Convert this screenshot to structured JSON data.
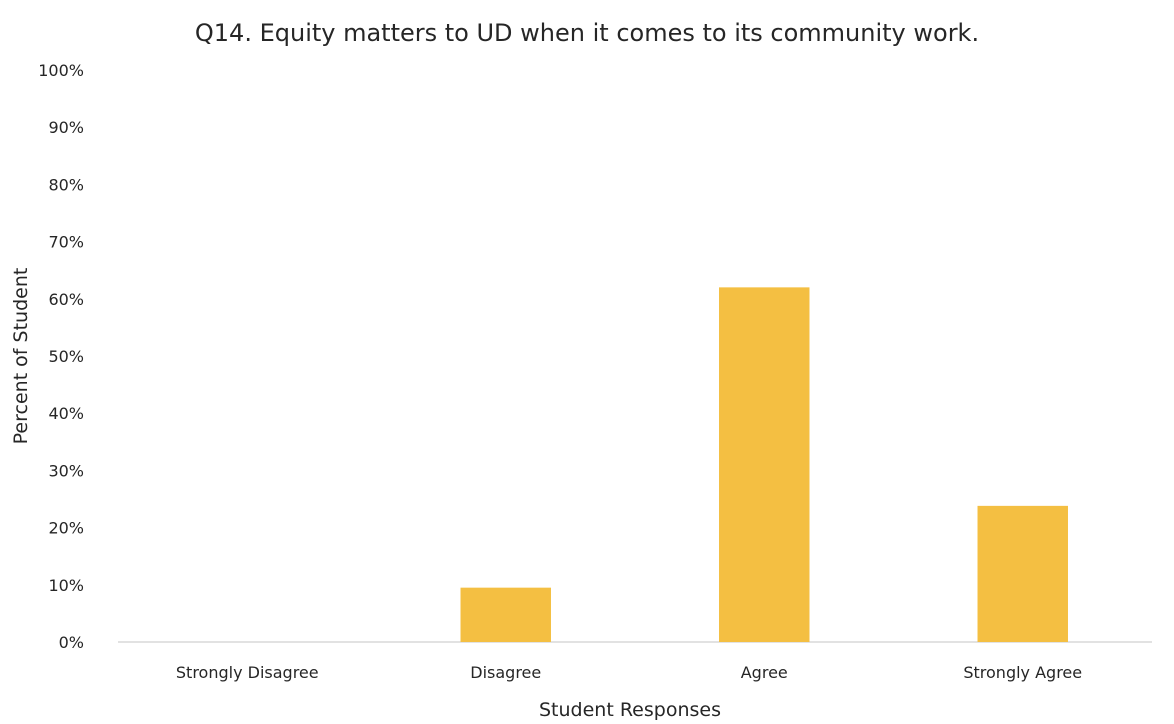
{
  "chart_data": {
    "type": "bar",
    "title": "Q14. Equity matters to UD when it comes to its community work.",
    "xlabel": "Student Responses",
    "ylabel": "Percent of Student",
    "categories": [
      "Strongly Disagree",
      "Disagree",
      "Agree",
      "Strongly Agree"
    ],
    "values": [
      0,
      9.5,
      62,
      23.8
    ],
    "ylim": [
      0,
      100
    ],
    "yticks": [
      "0%",
      "10%",
      "20%",
      "30%",
      "40%",
      "50%",
      "60%",
      "70%",
      "80%",
      "90%",
      "100%"
    ],
    "bar_color": "#F4BF42",
    "axis_color": "#D9D9D9",
    "grid": false,
    "legend": "none"
  }
}
